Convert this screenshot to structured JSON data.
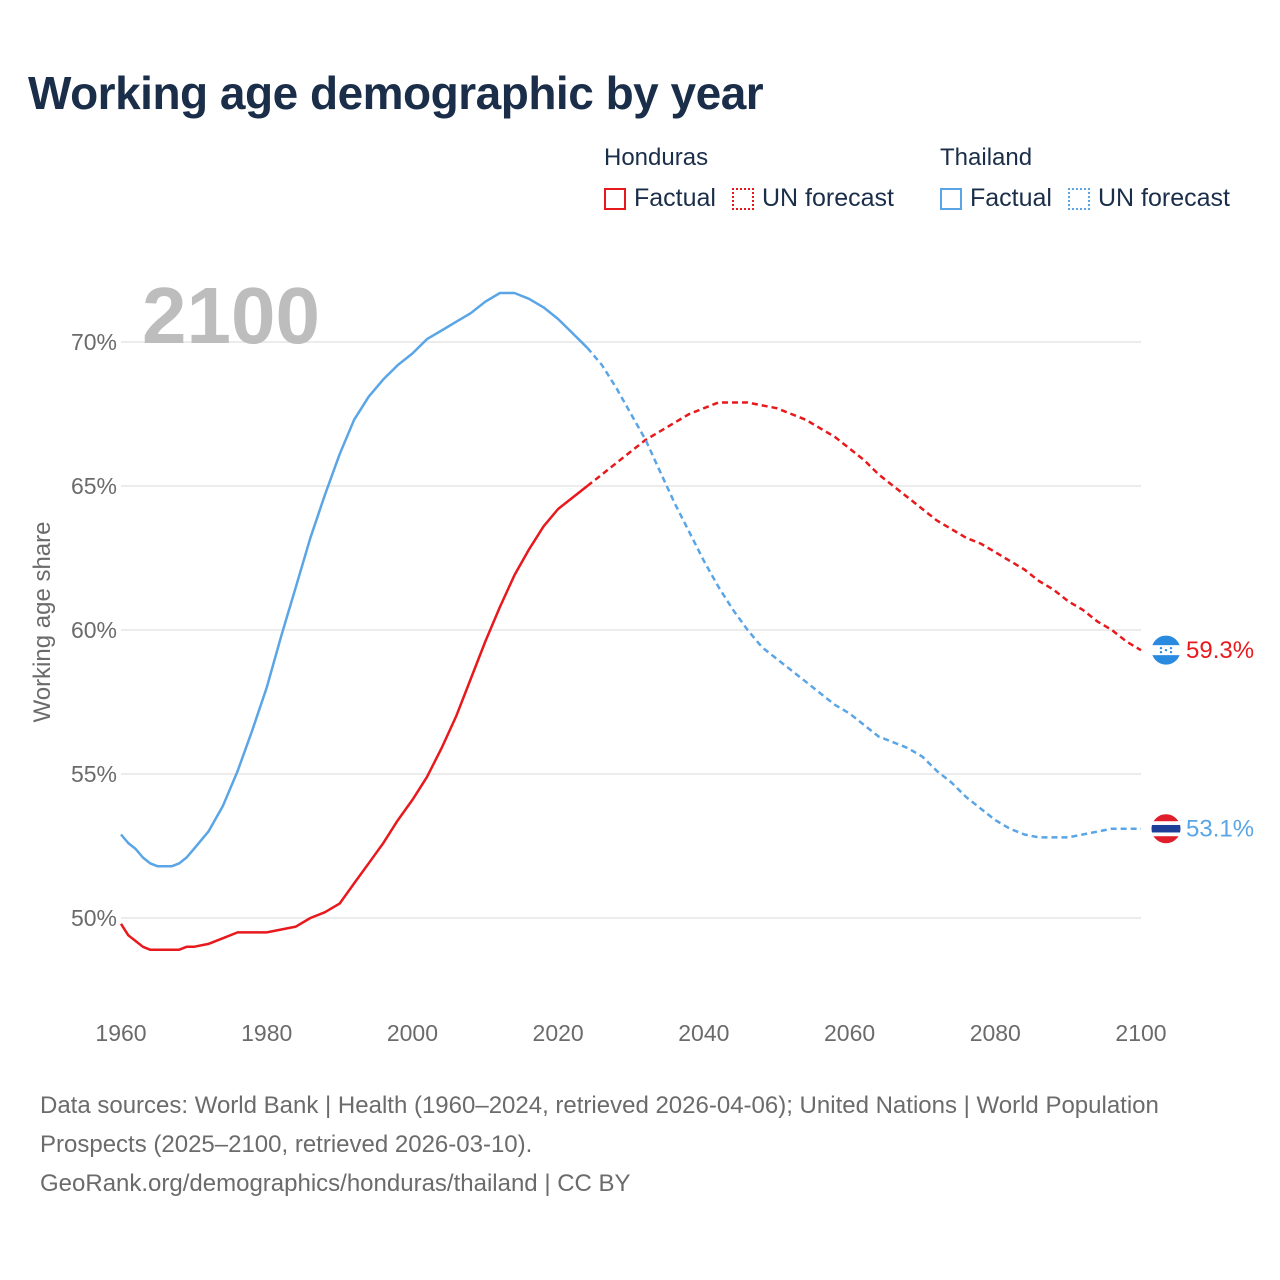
{
  "title": "Working age demographic by year",
  "year_label": "2100",
  "legend": {
    "groups": [
      {
        "country": "Honduras",
        "factual": "Factual",
        "forecast": "UN forecast",
        "color": "#e8191c"
      },
      {
        "country": "Thailand",
        "factual": "Factual",
        "forecast": "UN forecast",
        "color": "#5aa5e6"
      }
    ]
  },
  "footer": {
    "sources": "Data sources: World Bank | Health (1960–2024, retrieved 2026-04-06); United Nations | World Population Prospects (2025–2100, retrieved 2026-03-10).",
    "credit": "GeoRank.org/demographics/honduras/thailand | CC BY"
  },
  "chart_data": {
    "type": "line",
    "title": "Working age demographic by year",
    "xlabel": "",
    "ylabel": "Working age share",
    "xlim": [
      1960,
      2100
    ],
    "ylim": [
      47.5,
      72.5
    ],
    "x_ticks": [
      1960,
      1980,
      2000,
      2020,
      2040,
      2060,
      2080,
      2100
    ],
    "y_ticks": [
      50,
      55,
      60,
      65,
      70
    ],
    "y_tick_labels": [
      "50%",
      "55%",
      "60%",
      "65%",
      "70%"
    ],
    "grid": true,
    "forecast_start": 2024,
    "series": [
      {
        "name": "Honduras",
        "color": "#e8191c",
        "end_label": "59.3%",
        "flag": "honduras-flag",
        "points": [
          [
            1960,
            49.8
          ],
          [
            1961,
            49.4
          ],
          [
            1962,
            49.2
          ],
          [
            1963,
            49.0
          ],
          [
            1964,
            48.9
          ],
          [
            1965,
            48.9
          ],
          [
            1966,
            48.9
          ],
          [
            1967,
            48.9
          ],
          [
            1968,
            48.9
          ],
          [
            1969,
            49.0
          ],
          [
            1970,
            49.0
          ],
          [
            1972,
            49.1
          ],
          [
            1974,
            49.3
          ],
          [
            1976,
            49.5
          ],
          [
            1978,
            49.5
          ],
          [
            1980,
            49.5
          ],
          [
            1982,
            49.6
          ],
          [
            1984,
            49.7
          ],
          [
            1986,
            50.0
          ],
          [
            1988,
            50.2
          ],
          [
            1990,
            50.5
          ],
          [
            1992,
            51.2
          ],
          [
            1994,
            51.9
          ],
          [
            1996,
            52.6
          ],
          [
            1998,
            53.4
          ],
          [
            2000,
            54.1
          ],
          [
            2002,
            54.9
          ],
          [
            2004,
            55.9
          ],
          [
            2006,
            57.0
          ],
          [
            2008,
            58.3
          ],
          [
            2010,
            59.6
          ],
          [
            2012,
            60.8
          ],
          [
            2014,
            61.9
          ],
          [
            2016,
            62.8
          ],
          [
            2018,
            63.6
          ],
          [
            2020,
            64.2
          ],
          [
            2022,
            64.6
          ],
          [
            2024,
            65.0
          ],
          [
            2026,
            65.4
          ],
          [
            2028,
            65.8
          ],
          [
            2030,
            66.2
          ],
          [
            2032,
            66.6
          ],
          [
            2034,
            66.9
          ],
          [
            2036,
            67.2
          ],
          [
            2038,
            67.5
          ],
          [
            2040,
            67.7
          ],
          [
            2042,
            67.9
          ],
          [
            2044,
            67.9
          ],
          [
            2046,
            67.9
          ],
          [
            2048,
            67.8
          ],
          [
            2050,
            67.7
          ],
          [
            2052,
            67.5
          ],
          [
            2054,
            67.3
          ],
          [
            2056,
            67.0
          ],
          [
            2058,
            66.7
          ],
          [
            2060,
            66.3
          ],
          [
            2062,
            65.9
          ],
          [
            2064,
            65.4
          ],
          [
            2066,
            65.0
          ],
          [
            2068,
            64.6
          ],
          [
            2070,
            64.2
          ],
          [
            2072,
            63.8
          ],
          [
            2074,
            63.5
          ],
          [
            2076,
            63.2
          ],
          [
            2078,
            63.0
          ],
          [
            2080,
            62.7
          ],
          [
            2082,
            62.4
          ],
          [
            2084,
            62.1
          ],
          [
            2086,
            61.7
          ],
          [
            2088,
            61.4
          ],
          [
            2090,
            61.0
          ],
          [
            2092,
            60.7
          ],
          [
            2094,
            60.3
          ],
          [
            2096,
            60.0
          ],
          [
            2098,
            59.6
          ],
          [
            2100,
            59.3
          ]
        ]
      },
      {
        "name": "Thailand",
        "color": "#5aa5e6",
        "end_label": "53.1%",
        "flag": "thailand-flag",
        "points": [
          [
            1960,
            52.9
          ],
          [
            1961,
            52.6
          ],
          [
            1962,
            52.4
          ],
          [
            1963,
            52.1
          ],
          [
            1964,
            51.9
          ],
          [
            1965,
            51.8
          ],
          [
            1966,
            51.8
          ],
          [
            1967,
            51.8
          ],
          [
            1968,
            51.9
          ],
          [
            1969,
            52.1
          ],
          [
            1970,
            52.4
          ],
          [
            1972,
            53.0
          ],
          [
            1974,
            53.9
          ],
          [
            1976,
            55.1
          ],
          [
            1978,
            56.5
          ],
          [
            1980,
            58.0
          ],
          [
            1982,
            59.8
          ],
          [
            1984,
            61.5
          ],
          [
            1986,
            63.2
          ],
          [
            1988,
            64.7
          ],
          [
            1990,
            66.1
          ],
          [
            1992,
            67.3
          ],
          [
            1994,
            68.1
          ],
          [
            1996,
            68.7
          ],
          [
            1998,
            69.2
          ],
          [
            2000,
            69.6
          ],
          [
            2002,
            70.1
          ],
          [
            2004,
            70.4
          ],
          [
            2006,
            70.7
          ],
          [
            2008,
            71.0
          ],
          [
            2010,
            71.4
          ],
          [
            2012,
            71.7
          ],
          [
            2013,
            71.7
          ],
          [
            2014,
            71.7
          ],
          [
            2016,
            71.5
          ],
          [
            2018,
            71.2
          ],
          [
            2020,
            70.8
          ],
          [
            2022,
            70.3
          ],
          [
            2024,
            69.8
          ],
          [
            2026,
            69.2
          ],
          [
            2028,
            68.4
          ],
          [
            2030,
            67.5
          ],
          [
            2032,
            66.6
          ],
          [
            2034,
            65.5
          ],
          [
            2036,
            64.4
          ],
          [
            2038,
            63.4
          ],
          [
            2040,
            62.4
          ],
          [
            2042,
            61.5
          ],
          [
            2044,
            60.7
          ],
          [
            2046,
            60.0
          ],
          [
            2048,
            59.4
          ],
          [
            2050,
            59.0
          ],
          [
            2052,
            58.6
          ],
          [
            2054,
            58.2
          ],
          [
            2056,
            57.8
          ],
          [
            2058,
            57.4
          ],
          [
            2060,
            57.1
          ],
          [
            2062,
            56.7
          ],
          [
            2064,
            56.3
          ],
          [
            2066,
            56.1
          ],
          [
            2068,
            55.9
          ],
          [
            2070,
            55.6
          ],
          [
            2072,
            55.1
          ],
          [
            2074,
            54.7
          ],
          [
            2076,
            54.2
          ],
          [
            2078,
            53.8
          ],
          [
            2080,
            53.4
          ],
          [
            2082,
            53.1
          ],
          [
            2084,
            52.9
          ],
          [
            2086,
            52.8
          ],
          [
            2088,
            52.8
          ],
          [
            2090,
            52.8
          ],
          [
            2092,
            52.9
          ],
          [
            2094,
            53.0
          ],
          [
            2096,
            53.1
          ],
          [
            2098,
            53.1
          ],
          [
            2100,
            53.1
          ]
        ]
      }
    ]
  }
}
